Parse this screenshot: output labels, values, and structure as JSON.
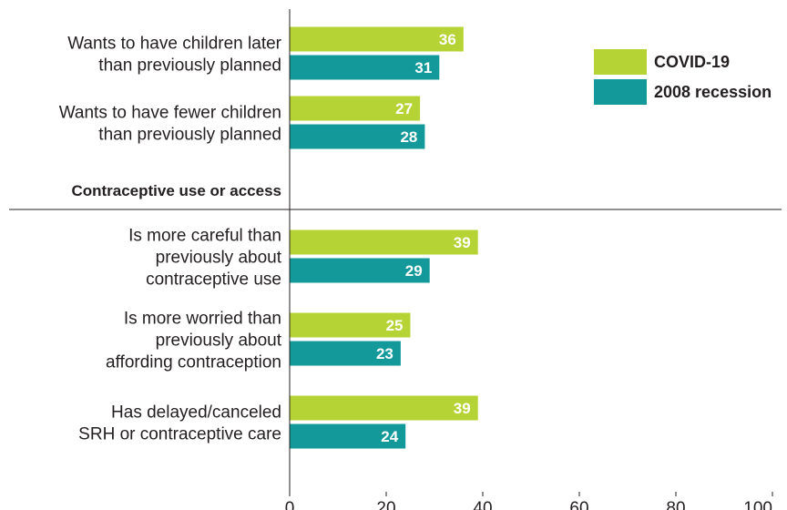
{
  "chart_data": {
    "type": "bar",
    "orientation": "horizontal",
    "xlim": [
      0,
      100
    ],
    "xticks": [
      0,
      20,
      40,
      60,
      80,
      100
    ],
    "legend_position": "top-right",
    "series": [
      {
        "name": "COVID-19",
        "color": "#b5d334"
      },
      {
        "name": "2008 recession",
        "color": "#13999a"
      }
    ],
    "sections": [
      {
        "title": "",
        "groups": [
          {
            "label": [
              "Wants to have children later",
              "than previously planned"
            ],
            "values": [
              36,
              31
            ]
          },
          {
            "label": [
              "Wants to have fewer children",
              "than previously planned"
            ],
            "values": [
              27,
              28
            ]
          }
        ]
      },
      {
        "title": "Contraceptive use or access",
        "groups": [
          {
            "label": [
              "Is more careful than",
              "previously about",
              "contraceptive use"
            ],
            "values": [
              39,
              29
            ]
          },
          {
            "label": [
              "Is more worried than",
              "previously about",
              "affording contraception"
            ],
            "values": [
              25,
              23
            ]
          },
          {
            "label": [
              "Has delayed/canceled",
              "SRH or contraceptive care"
            ],
            "values": [
              39,
              24
            ]
          }
        ]
      }
    ]
  }
}
